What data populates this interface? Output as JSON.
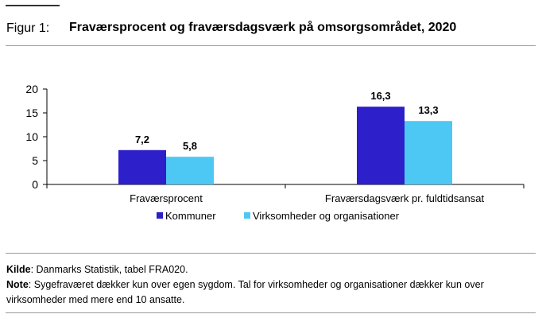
{
  "figure": {
    "label": "Figur 1:",
    "title": "Fraværsprocent og fraværsdagsværk på omsorgsområdet, 2020"
  },
  "chart_data": {
    "type": "bar",
    "categories": [
      "Fraværsprocent",
      "Fraværsdagsværk pr. fuldtidsansat"
    ],
    "series": [
      {
        "name": "Kommuner",
        "values": [
          7.2,
          16.3
        ],
        "labels": [
          "7,2",
          "16,3"
        ],
        "color": "#2d1fc9"
      },
      {
        "name": "Virksomheder og organisationer",
        "values": [
          5.8,
          13.3
        ],
        "labels": [
          "5,8",
          "13,3"
        ],
        "color": "#4dc8f5"
      }
    ],
    "yticks": [
      0,
      5,
      10,
      15,
      20
    ],
    "ylim": [
      0,
      20
    ],
    "grid": false,
    "legend": "bottom-center"
  },
  "notes": {
    "source_label": "Kilde",
    "source_text": ": Danmarks Statistik, tabel FRA020.",
    "note_label": "Note",
    "note_text": ": Sygefraværet dækker kun over egen sygdom. Tal for virksomheder og organisationer dækker kun over virksomheder med mere end 10 ansatte."
  }
}
